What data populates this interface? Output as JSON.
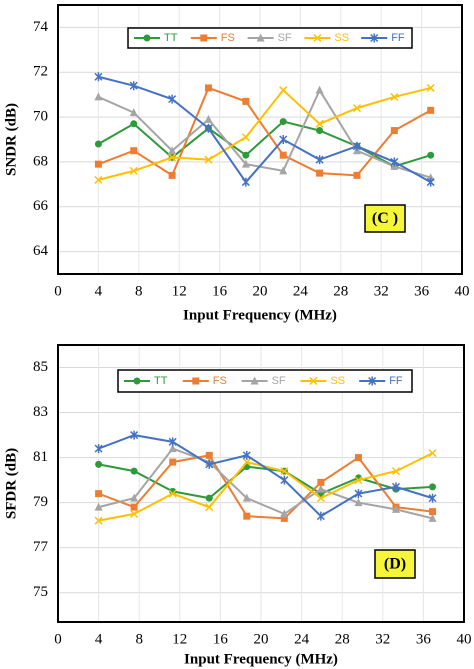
{
  "chart_data": [
    {
      "type": "line",
      "xlabel": "Input Frequency (MHz)",
      "ylabel": "SNDR (dB)",
      "annotation": "(C )",
      "x": [
        4,
        7.5,
        11.3,
        14.9,
        18.6,
        22.3,
        25.9,
        29.6,
        33.3,
        36.9
      ],
      "xlim": [
        0,
        40
      ],
      "xticks": [
        0,
        4,
        8,
        12,
        16,
        20,
        24,
        28,
        32,
        36,
        40
      ],
      "ylim": [
        63,
        75
      ],
      "yticks": [
        64,
        66,
        68,
        70,
        72,
        74
      ],
      "grid": true,
      "series": [
        {
          "name": "TT",
          "color": "#2e9a3b",
          "marker": "circle",
          "values": [
            68.8,
            69.7,
            68.2,
            69.5,
            68.3,
            69.8,
            69.4,
            68.7,
            67.8,
            68.3
          ]
        },
        {
          "name": "FS",
          "color": "#ed7d31",
          "marker": "square",
          "values": [
            67.9,
            68.5,
            67.4,
            71.3,
            70.7,
            68.3,
            67.5,
            67.4,
            69.4,
            70.3
          ]
        },
        {
          "name": "SF",
          "color": "#a5a5a5",
          "marker": "triangle",
          "values": [
            70.9,
            70.2,
            68.5,
            69.9,
            67.9,
            67.6,
            71.2,
            68.5,
            67.8,
            67.3
          ]
        },
        {
          "name": "SS",
          "color": "#ffc000",
          "marker": "x",
          "values": [
            67.2,
            67.6,
            68.2,
            68.1,
            69.1,
            71.2,
            69.7,
            70.4,
            70.9,
            71.3
          ]
        },
        {
          "name": "FF",
          "color": "#4472c4",
          "marker": "star",
          "values": [
            71.8,
            71.4,
            70.8,
            69.5,
            67.1,
            69.0,
            68.1,
            68.7,
            68.0,
            67.1
          ]
        }
      ]
    },
    {
      "type": "line",
      "xlabel": "Input Frequency (MHz)",
      "ylabel": "SFDR (dB)",
      "annotation": "(D)",
      "x": [
        4,
        7.5,
        11.3,
        14.9,
        18.6,
        22.3,
        25.9,
        29.6,
        33.3,
        36.9
      ],
      "xlim": [
        0,
        40
      ],
      "xticks": [
        0,
        4,
        8,
        12,
        16,
        20,
        24,
        28,
        32,
        36,
        40
      ],
      "ylim": [
        73.7,
        86
      ],
      "yticks": [
        75,
        77,
        79,
        81,
        83,
        85
      ],
      "grid": true,
      "series": [
        {
          "name": "TT",
          "color": "#2e9a3b",
          "marker": "circle",
          "values": [
            80.7,
            80.4,
            79.5,
            79.2,
            80.6,
            80.4,
            79.4,
            80.1,
            79.6,
            79.7
          ]
        },
        {
          "name": "FS",
          "color": "#ed7d31",
          "marker": "square",
          "values": [
            79.4,
            78.8,
            80.8,
            81.1,
            78.4,
            78.3,
            79.9,
            81.0,
            78.8,
            78.6
          ]
        },
        {
          "name": "SF",
          "color": "#a5a5a5",
          "marker": "triangle",
          "values": [
            78.8,
            79.2,
            81.4,
            80.8,
            79.2,
            78.5,
            79.6,
            79.0,
            78.7,
            78.3
          ]
        },
        {
          "name": "SS",
          "color": "#ffc000",
          "marker": "x",
          "values": [
            78.2,
            78.5,
            79.4,
            78.8,
            80.8,
            80.4,
            79.2,
            80.0,
            80.4,
            81.2
          ]
        },
        {
          "name": "FF",
          "color": "#4472c4",
          "marker": "star",
          "values": [
            81.4,
            82.0,
            81.7,
            80.7,
            81.1,
            80.0,
            78.4,
            79.4,
            79.7,
            79.2
          ]
        }
      ]
    }
  ]
}
